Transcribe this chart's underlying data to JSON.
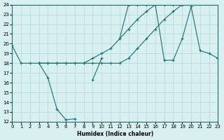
{
  "xlabel": "Humidex (Indice chaleur)",
  "ylabel": "",
  "xlim": [
    0,
    23
  ],
  "ylim": [
    12,
    24
  ],
  "xticks": [
    0,
    1,
    2,
    3,
    4,
    5,
    6,
    7,
    8,
    9,
    10,
    11,
    12,
    13,
    14,
    15,
    16,
    17,
    18,
    19,
    20,
    21,
    22,
    23
  ],
  "yticks": [
    12,
    13,
    14,
    15,
    16,
    17,
    18,
    19,
    20,
    21,
    22,
    23,
    24
  ],
  "bg_color": "#d8f0f0",
  "line_color": "#1a7070",
  "grid_color": "#b0d8d8",
  "lines": [
    {
      "x": [
        0,
        1,
        2,
        3,
        4,
        5,
        6,
        7,
        8,
        9,
        10,
        11,
        12,
        13,
        14,
        15,
        16,
        17,
        18,
        19,
        20,
        21,
        22,
        23
      ],
      "y": [
        19.8,
        18,
        18,
        18,
        16.5,
        13.3,
        12.2,
        12.3,
        null,
        16.3,
        18.5,
        null,
        20.5,
        24,
        24,
        24,
        24,
        18.3,
        18.3,
        20.5,
        23.8,
        19.3,
        19,
        18.5
      ]
    },
    {
      "x": [
        0,
        1,
        2,
        3,
        4,
        5,
        6,
        7,
        8,
        9,
        10,
        11,
        12,
        13,
        14,
        15,
        16,
        17,
        18,
        19,
        20,
        21,
        22,
        23
      ],
      "y": [
        null,
        null,
        null,
        18,
        18,
        18,
        18,
        18,
        18,
        18,
        18,
        18,
        18,
        18.5,
        19.5,
        20.5,
        21.5,
        22.5,
        23.3,
        24,
        24,
        null,
        null,
        18.5
      ]
    },
    {
      "x": [
        0,
        1,
        2,
        3,
        4,
        5,
        6,
        7,
        8,
        9,
        10,
        11,
        12,
        13,
        14,
        15,
        16,
        17,
        18,
        19,
        20,
        21,
        22,
        23
      ],
      "y": [
        null,
        null,
        null,
        18,
        18,
        18,
        18,
        18,
        18,
        18.5,
        19,
        19.5,
        20.5,
        21.5,
        22.5,
        23.3,
        24,
        24,
        24,
        24,
        24.3,
        null,
        null,
        18.5
      ]
    }
  ]
}
